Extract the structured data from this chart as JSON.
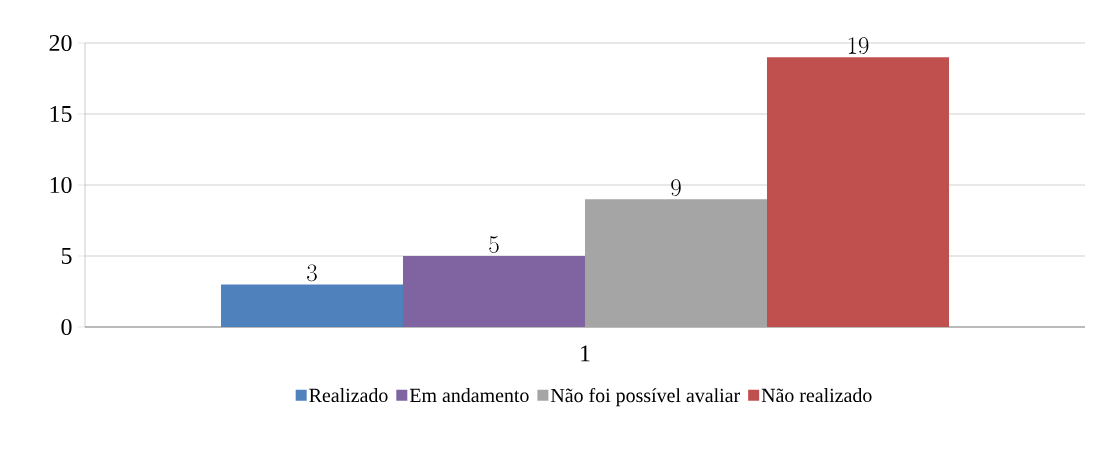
{
  "chart_data": {
    "type": "bar",
    "categories": [
      "1"
    ],
    "series": [
      {
        "name": "Realizado",
        "color": "#4f81bd",
        "values": [
          3
        ]
      },
      {
        "name": "Em andamento",
        "color": "#8064a2",
        "values": [
          5
        ]
      },
      {
        "name": "Não foi possível avaliar",
        "color": "#a5a5a5",
        "values": [
          9
        ]
      },
      {
        "name": "Não realizado",
        "color": "#c0504d",
        "values": [
          19
        ]
      }
    ],
    "ylim": [
      0,
      20
    ],
    "yticks": [
      0,
      5,
      10,
      15,
      20
    ],
    "grid": "y",
    "legend": "bottom",
    "data_labels": true
  }
}
